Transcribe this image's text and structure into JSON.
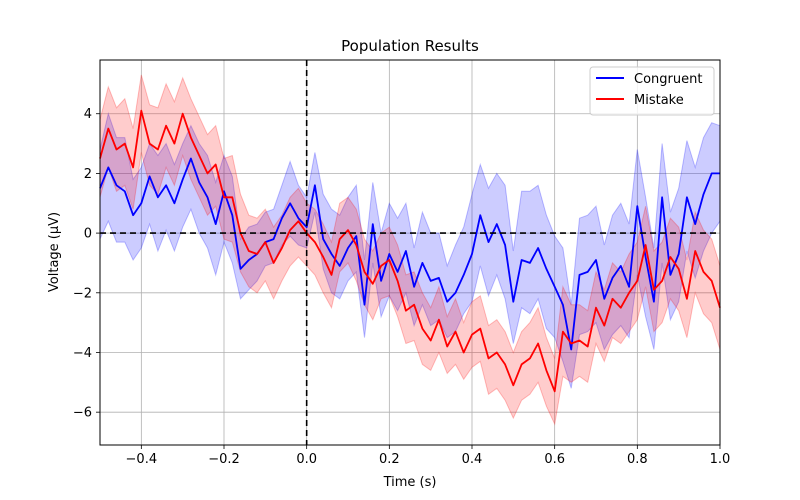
{
  "chart_data": {
    "type": "line",
    "title": "Population Results",
    "xlabel": "Time (s)",
    "ylabel": "Voltage (μV)",
    "xlim": [
      -0.5,
      1.0
    ],
    "ylim": [
      -7.1,
      5.8
    ],
    "xticks": [
      -0.4,
      -0.2,
      0.0,
      0.2,
      0.4,
      0.6,
      0.8,
      1.0
    ],
    "xtick_labels": [
      "−0.4",
      "−0.2",
      "0.0",
      "0.2",
      "0.4",
      "0.6",
      "0.8",
      "1.0"
    ],
    "yticks": [
      -6,
      -4,
      -2,
      0,
      2,
      4
    ],
    "ytick_labels": [
      "−6",
      "−4",
      "−2",
      "0",
      "2",
      "4"
    ],
    "grid": true,
    "legend_position": "upper right",
    "reference_lines": [
      {
        "orientation": "vertical",
        "value": 0.0,
        "style": "dashed",
        "color": "#000000"
      },
      {
        "orientation": "horizontal",
        "value": 0.0,
        "style": "dashed",
        "color": "#000000"
      }
    ],
    "series": [
      {
        "name": "Congruent",
        "color": "#0000ff",
        "band_color": "#0000ff",
        "x": [
          -0.5,
          -0.48,
          -0.46,
          -0.44,
          -0.42,
          -0.4,
          -0.38,
          -0.36,
          -0.34,
          -0.32,
          -0.3,
          -0.28,
          -0.26,
          -0.24,
          -0.22,
          -0.2,
          -0.18,
          -0.16,
          -0.14,
          -0.12,
          -0.1,
          -0.08,
          -0.06,
          -0.04,
          -0.02,
          0.0,
          0.02,
          0.04,
          0.06,
          0.08,
          0.1,
          0.12,
          0.14,
          0.16,
          0.18,
          0.2,
          0.22,
          0.24,
          0.26,
          0.28,
          0.3,
          0.32,
          0.34,
          0.36,
          0.38,
          0.4,
          0.42,
          0.44,
          0.46,
          0.48,
          0.5,
          0.52,
          0.54,
          0.56,
          0.58,
          0.6,
          0.62,
          0.64,
          0.66,
          0.68,
          0.7,
          0.72,
          0.74,
          0.76,
          0.78,
          0.8,
          0.82,
          0.84,
          0.86,
          0.88,
          0.9,
          0.92,
          0.94,
          0.96,
          0.98,
          1.0
        ],
        "y": [
          1.5,
          2.2,
          1.6,
          1.4,
          0.6,
          1.0,
          1.9,
          1.2,
          1.6,
          1.0,
          1.8,
          2.5,
          1.7,
          1.2,
          0.3,
          1.4,
          0.6,
          -1.2,
          -0.9,
          -0.7,
          -0.3,
          -0.2,
          0.5,
          1.0,
          0.5,
          0.2,
          1.6,
          -0.2,
          -0.7,
          -1.1,
          -0.5,
          -0.1,
          -2.4,
          0.3,
          -1.6,
          -0.7,
          -1.3,
          -0.6,
          -1.8,
          -1.0,
          -1.6,
          -1.5,
          -2.3,
          -2.0,
          -1.4,
          -0.7,
          0.6,
          -0.3,
          0.3,
          -0.4,
          -2.3,
          -0.9,
          -1.0,
          -0.5,
          -1.2,
          -1.8,
          -2.4,
          -3.9,
          -1.4,
          -1.3,
          -0.9,
          -2.2,
          -1.5,
          -1.1,
          -1.8,
          0.9,
          -0.8,
          -2.3,
          1.2,
          -1.4,
          -0.7,
          1.2,
          0.3,
          1.3,
          2.0,
          2.0
        ],
        "lower": [
          -0.2,
          0.4,
          -0.3,
          -0.3,
          -0.9,
          -0.5,
          0.3,
          -0.6,
          0.1,
          -0.6,
          0.2,
          0.8,
          0.0,
          -0.5,
          -1.4,
          -0.3,
          -1.0,
          -2.2,
          -1.9,
          -1.6,
          -1.1,
          -1.0,
          -0.4,
          -0.1,
          -0.4,
          -0.5,
          0.7,
          -1.2,
          -2.0,
          -2.2,
          -1.6,
          -1.3,
          -3.5,
          -1.0,
          -2.8,
          -2.1,
          -2.6,
          -2.0,
          -3.1,
          -2.4,
          -3.1,
          -2.9,
          -3.5,
          -3.3,
          -2.7,
          -2.3,
          -1.1,
          -2.1,
          -1.4,
          -2.2,
          -3.7,
          -2.5,
          -2.7,
          -2.2,
          -3.2,
          -3.5,
          -4.3,
          -5.2,
          -3.4,
          -3.3,
          -3.0,
          -3.9,
          -3.4,
          -3.1,
          -3.5,
          -1.4,
          -2.8,
          -3.9,
          -1.0,
          -2.9,
          -2.3,
          -0.6,
          -1.5,
          -0.6,
          0.0,
          0.4
        ],
        "upper": [
          2.8,
          4.0,
          3.2,
          3.2,
          1.8,
          2.2,
          3.0,
          2.6,
          3.0,
          2.3,
          3.0,
          3.6,
          3.0,
          2.6,
          1.7,
          2.6,
          1.9,
          -0.2,
          0.2,
          0.3,
          0.7,
          0.8,
          1.6,
          2.4,
          1.6,
          1.2,
          2.7,
          1.3,
          0.8,
          0.6,
          1.2,
          1.6,
          -0.9,
          1.7,
          0.0,
          1.0,
          0.5,
          1.0,
          -0.5,
          0.7,
          0.0,
          0.0,
          -1.1,
          -0.4,
          0.2,
          1.3,
          2.3,
          1.5,
          2.0,
          1.6,
          -0.6,
          1.4,
          1.4,
          1.6,
          0.6,
          -0.1,
          -0.5,
          -2.4,
          0.5,
          0.6,
          0.9,
          -0.4,
          0.6,
          1.0,
          0.3,
          2.8,
          1.2,
          -0.5,
          3.0,
          0.7,
          1.5,
          3.1,
          2.2,
          3.2,
          3.7,
          3.6
        ]
      },
      {
        "name": "Mistake",
        "color": "#ff0000",
        "band_color": "#ff0000",
        "x": [
          -0.5,
          -0.48,
          -0.46,
          -0.44,
          -0.42,
          -0.4,
          -0.38,
          -0.36,
          -0.34,
          -0.32,
          -0.3,
          -0.28,
          -0.26,
          -0.24,
          -0.22,
          -0.2,
          -0.18,
          -0.16,
          -0.14,
          -0.12,
          -0.1,
          -0.08,
          -0.06,
          -0.04,
          -0.02,
          0.0,
          0.02,
          0.04,
          0.06,
          0.08,
          0.1,
          0.12,
          0.14,
          0.16,
          0.18,
          0.2,
          0.22,
          0.24,
          0.26,
          0.28,
          0.3,
          0.32,
          0.34,
          0.36,
          0.38,
          0.4,
          0.42,
          0.44,
          0.46,
          0.48,
          0.5,
          0.52,
          0.54,
          0.56,
          0.58,
          0.6,
          0.62,
          0.64,
          0.66,
          0.68,
          0.7,
          0.72,
          0.74,
          0.76,
          0.78,
          0.8,
          0.82,
          0.84,
          0.86,
          0.88,
          0.9,
          0.92,
          0.94,
          0.96,
          0.98,
          1.0
        ],
        "y": [
          2.5,
          3.5,
          2.8,
          3.0,
          2.2,
          4.1,
          3.0,
          2.8,
          3.6,
          3.0,
          4.0,
          3.2,
          2.6,
          2.0,
          2.3,
          1.2,
          1.2,
          0.0,
          -0.6,
          -0.7,
          -0.3,
          -1.0,
          -0.5,
          0.1,
          0.4,
          0.0,
          -0.3,
          -0.8,
          -1.4,
          -0.2,
          0.1,
          -0.4,
          -1.3,
          -1.7,
          -1.1,
          -0.9,
          -1.6,
          -2.6,
          -2.4,
          -3.2,
          -3.6,
          -2.9,
          -3.8,
          -3.3,
          -4.0,
          -3.4,
          -3.2,
          -4.2,
          -4.0,
          -4.4,
          -5.1,
          -4.4,
          -4.2,
          -3.7,
          -4.6,
          -5.3,
          -3.3,
          -3.7,
          -3.6,
          -3.8,
          -2.5,
          -3.1,
          -2.2,
          -2.5,
          -2.0,
          -1.6,
          -0.4,
          -1.9,
          -1.6,
          -0.8,
          -1.2,
          -2.2,
          -0.6,
          -1.3,
          -1.6,
          -2.5
        ],
        "lower": [
          1.2,
          2.2,
          1.4,
          1.6,
          0.8,
          2.7,
          1.6,
          1.3,
          2.2,
          1.6,
          2.6,
          1.8,
          1.2,
          0.6,
          0.9,
          -0.2,
          -0.3,
          -1.3,
          -1.8,
          -2.0,
          -1.6,
          -2.2,
          -1.6,
          -1.1,
          -0.8,
          -1.1,
          -1.4,
          -2.0,
          -2.5,
          -1.3,
          -1.0,
          -1.6,
          -2.4,
          -2.9,
          -2.2,
          -2.1,
          -2.8,
          -3.7,
          -3.6,
          -4.4,
          -4.6,
          -4.0,
          -4.7,
          -4.4,
          -4.9,
          -4.5,
          -4.3,
          -5.4,
          -5.2,
          -5.6,
          -6.2,
          -5.6,
          -5.4,
          -5.0,
          -5.8,
          -6.4,
          -4.8,
          -5.0,
          -4.8,
          -5.0,
          -3.7,
          -4.3,
          -3.5,
          -3.7,
          -3.3,
          -2.9,
          -1.8,
          -3.3,
          -3.0,
          -2.2,
          -2.6,
          -3.5,
          -2.0,
          -2.7,
          -3.0,
          -3.9
        ],
        "upper": [
          3.8,
          4.9,
          4.2,
          4.5,
          3.5,
          5.3,
          4.3,
          4.2,
          5.0,
          4.4,
          5.2,
          4.5,
          3.9,
          3.3,
          3.6,
          2.5,
          2.6,
          1.3,
          0.6,
          0.5,
          0.8,
          0.2,
          0.6,
          1.2,
          1.5,
          1.0,
          0.8,
          0.3,
          -0.3,
          1.0,
          1.2,
          0.8,
          -0.2,
          -0.6,
          0.0,
          0.2,
          -0.4,
          -1.4,
          -1.3,
          -2.0,
          -2.5,
          -1.8,
          -2.8,
          -2.2,
          -3.0,
          -2.3,
          -2.1,
          -3.1,
          -2.9,
          -3.3,
          -4.0,
          -3.3,
          -3.0,
          -2.5,
          -3.5,
          -4.2,
          -1.8,
          -2.4,
          -2.4,
          -2.6,
          -1.3,
          -1.9,
          -1.0,
          -1.3,
          -0.7,
          -0.3,
          0.9,
          -0.6,
          -0.3,
          0.5,
          0.2,
          -0.9,
          0.7,
          0.1,
          -0.2,
          -1.1
        ]
      }
    ]
  }
}
